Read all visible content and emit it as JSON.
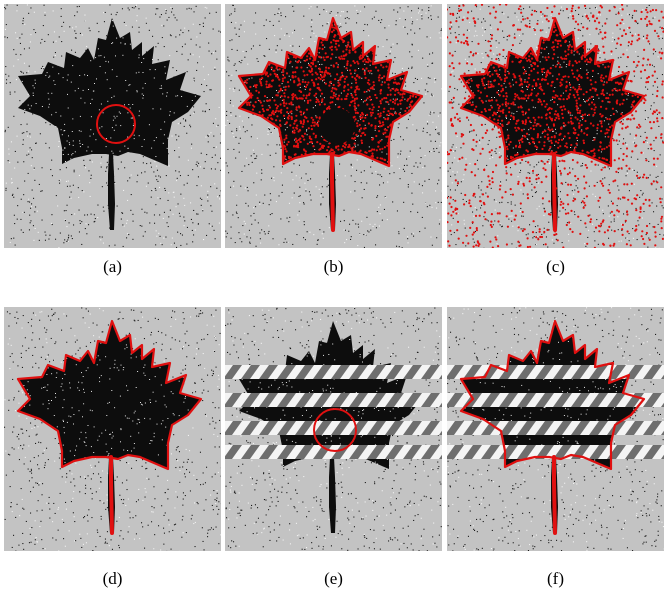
{
  "figure": {
    "colors": {
      "background": "#c3c3c3",
      "leaf": "#0d0d0d",
      "contour": "#e01010",
      "stripe_dark": "#6e6e6e",
      "stripe_light": "#f4f4f4"
    },
    "panels": [
      {
        "id": "a",
        "caption": "(a)",
        "content": "noisy-leaf-with-initial-circle"
      },
      {
        "id": "b",
        "caption": "(b)",
        "content": "leaf-contour-with-interior-points"
      },
      {
        "id": "c",
        "caption": "(c)",
        "content": "leaf-with-scattered-points"
      },
      {
        "id": "d",
        "caption": "(d)",
        "content": "leaf-final-contour"
      },
      {
        "id": "e",
        "caption": "(e)",
        "content": "occluded-leaf-with-initial-circle"
      },
      {
        "id": "f",
        "caption": "(f)",
        "content": "occluded-leaf-final-contour"
      }
    ]
  }
}
